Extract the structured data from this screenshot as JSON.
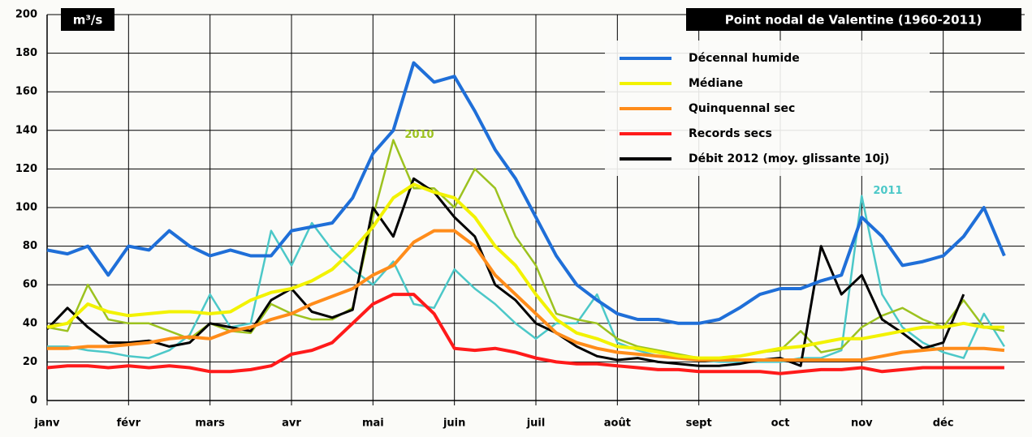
{
  "chart_data": {
    "type": "line",
    "title": "Point nodal de Valentine (1960-2011)",
    "y_label": "m³/s",
    "categories": [
      "janv",
      null,
      null,
      null,
      "févr",
      null,
      null,
      null,
      "mars",
      null,
      null,
      null,
      "avr",
      null,
      null,
      null,
      "mai",
      null,
      null,
      null,
      "juin",
      null,
      null,
      null,
      "juil",
      null,
      null,
      null,
      "août",
      null,
      null,
      null,
      "sept",
      null,
      null,
      null,
      "oct",
      null,
      null,
      null,
      "nov",
      null,
      null,
      null,
      "déc",
      null,
      null,
      null
    ],
    "ylim": [
      0,
      200
    ],
    "yticks": [
      0,
      20,
      40,
      60,
      80,
      100,
      120,
      140,
      160,
      180,
      200
    ],
    "grid": true,
    "legend": "upper right",
    "series": [
      {
        "name": "Décennal humide",
        "color": "#1f6fd8",
        "width": 4,
        "values": [
          78,
          76,
          80,
          65,
          80,
          78,
          88,
          80,
          75,
          78,
          75,
          75,
          88,
          90,
          92,
          105,
          128,
          140,
          175,
          165,
          168,
          150,
          130,
          115,
          95,
          75,
          60,
          52,
          45,
          42,
          42,
          40,
          40,
          42,
          48,
          55,
          58,
          58,
          62,
          65,
          95,
          85,
          70,
          72,
          75,
          85,
          100,
          75
        ]
      },
      {
        "name": "Médiane",
        "color": "#f2f200",
        "width": 4,
        "values": [
          38,
          40,
          50,
          46,
          44,
          45,
          46,
          46,
          45,
          46,
          52,
          56,
          58,
          62,
          68,
          78,
          90,
          105,
          112,
          108,
          105,
          95,
          80,
          70,
          55,
          42,
          35,
          32,
          28,
          27,
          25,
          23,
          22,
          22,
          23,
          25,
          27,
          28,
          30,
          32,
          32,
          34,
          36,
          38,
          38,
          40,
          38,
          38
        ]
      },
      {
        "name": "Quinquennal sec",
        "color": "#ff8c1a",
        "width": 4,
        "values": [
          27,
          27,
          28,
          28,
          29,
          30,
          32,
          33,
          32,
          36,
          38,
          42,
          45,
          50,
          54,
          58,
          65,
          70,
          82,
          88,
          88,
          80,
          65,
          55,
          45,
          35,
          30,
          27,
          25,
          24,
          23,
          22,
          21,
          21,
          21,
          21,
          21,
          21,
          21,
          21,
          21,
          23,
          25,
          26,
          27,
          27,
          27,
          26
        ]
      },
      {
        "name": "Records secs",
        "color": "#ff1a1a",
        "width": 4,
        "values": [
          17,
          18,
          18,
          17,
          18,
          17,
          18,
          17,
          15,
          15,
          16,
          18,
          24,
          26,
          30,
          40,
          50,
          55,
          55,
          45,
          27,
          26,
          27,
          25,
          22,
          20,
          19,
          19,
          18,
          17,
          16,
          16,
          15,
          15,
          15,
          15,
          14,
          15,
          16,
          16,
          17,
          15,
          16,
          17,
          17,
          17,
          17,
          17
        ]
      },
      {
        "name": "Débit 2012 (moy. glissante 10j)",
        "color": "#000000",
        "width": 3,
        "values": [
          37,
          48,
          38,
          30,
          30,
          31,
          28,
          30,
          40,
          38,
          36,
          52,
          58,
          46,
          43,
          47,
          100,
          85,
          115,
          108,
          95,
          85,
          60,
          52,
          40,
          35,
          28,
          23,
          21,
          22,
          20,
          19,
          18,
          18,
          19,
          21,
          22,
          18,
          80,
          55,
          65,
          42,
          35,
          27,
          30,
          55,
          null,
          null
        ]
      },
      {
        "name": "2010",
        "color": "#9cc21f",
        "width": 2.5,
        "label_in_plot": true,
        "values": [
          38,
          36,
          60,
          42,
          40,
          40,
          36,
          32,
          40,
          36,
          35,
          50,
          45,
          42,
          42,
          48,
          95,
          135,
          110,
          110,
          100,
          120,
          110,
          85,
          70,
          45,
          42,
          40,
          32,
          28,
          26,
          24,
          22,
          22,
          23,
          25,
          26,
          36,
          25,
          27,
          38,
          44,
          48,
          42,
          38,
          52,
          38,
          36
        ]
      },
      {
        "name": "2011",
        "color": "#4cc8c8",
        "width": 2.5,
        "label_in_plot": true,
        "values": [
          28,
          28,
          26,
          25,
          23,
          22,
          26,
          34,
          55,
          38,
          40,
          88,
          70,
          92,
          78,
          68,
          60,
          72,
          50,
          48,
          68,
          58,
          50,
          40,
          32,
          40,
          40,
          55,
          30,
          26,
          23,
          22,
          21,
          20,
          20,
          20,
          20,
          22,
          22,
          26,
          106,
          55,
          38,
          30,
          25,
          22,
          45,
          28
        ]
      }
    ]
  }
}
